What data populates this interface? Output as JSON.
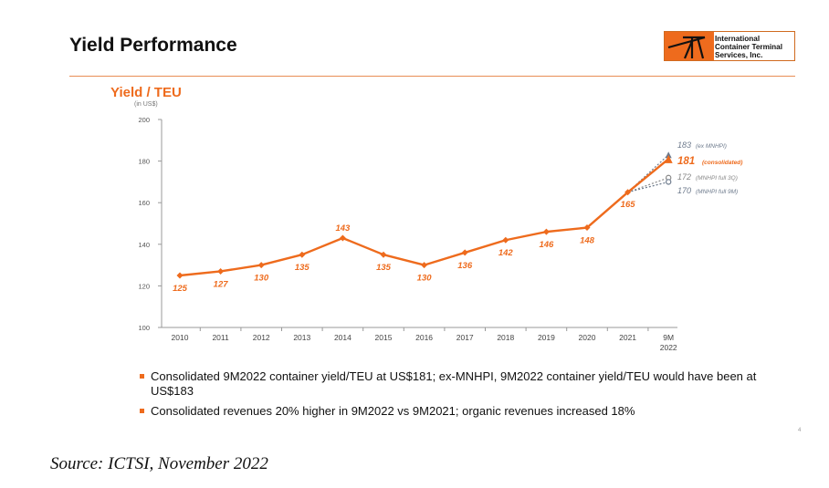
{
  "slide": {
    "title": "Yield Performance",
    "page_number": "4",
    "source": "Source: ICTSI, November 2022"
  },
  "logo": {
    "lines": [
      "International",
      "Container Terminal",
      "Services, Inc."
    ]
  },
  "bullets": [
    "Consolidated 9M2022 container yield/TEU at US$181; ex-MNHPI, 9M2022 container yield/TEU would have been at US$183",
    "Consolidated revenues 20% higher in 9M2022 vs 9M2021; organic revenues increased 18%"
  ],
  "colors": {
    "accent": "#ee6b1d",
    "label_blue_gray": "#6d7a8c",
    "gray": "#888888"
  },
  "chart_data": {
    "type": "line",
    "title": "Yield / TEU",
    "subtitle": "(in US$)",
    "categories": [
      "2010",
      "2011",
      "2012",
      "2013",
      "2014",
      "2015",
      "2016",
      "2017",
      "2018",
      "2019",
      "2020",
      "2021",
      "9M 2022"
    ],
    "series": [
      {
        "values": [
          125,
          127,
          130,
          135,
          143,
          135,
          130,
          136,
          142,
          146,
          148,
          165,
          181
        ]
      }
    ],
    "alternates": [
      {
        "value": 183,
        "label": "183",
        "note": "(ex MNHPI)",
        "marker": "triangle",
        "color": "#6d7a8c"
      },
      {
        "value": 181,
        "label": "181",
        "note": "(consolidated)",
        "marker": "triangle",
        "color": "#ee6b1d"
      },
      {
        "value": 172,
        "label": "172",
        "note": "(MNHPI full 3Q)",
        "marker": "circle",
        "color": "#888888"
      },
      {
        "value": 170,
        "label": "170",
        "note": "(MNHPI full 9M)",
        "marker": "circle",
        "color": "#6d7a8c"
      }
    ],
    "ylim": [
      100,
      200
    ],
    "yticks": [
      100,
      120,
      140,
      160,
      180,
      200
    ],
    "grid": false,
    "legend": "none"
  }
}
